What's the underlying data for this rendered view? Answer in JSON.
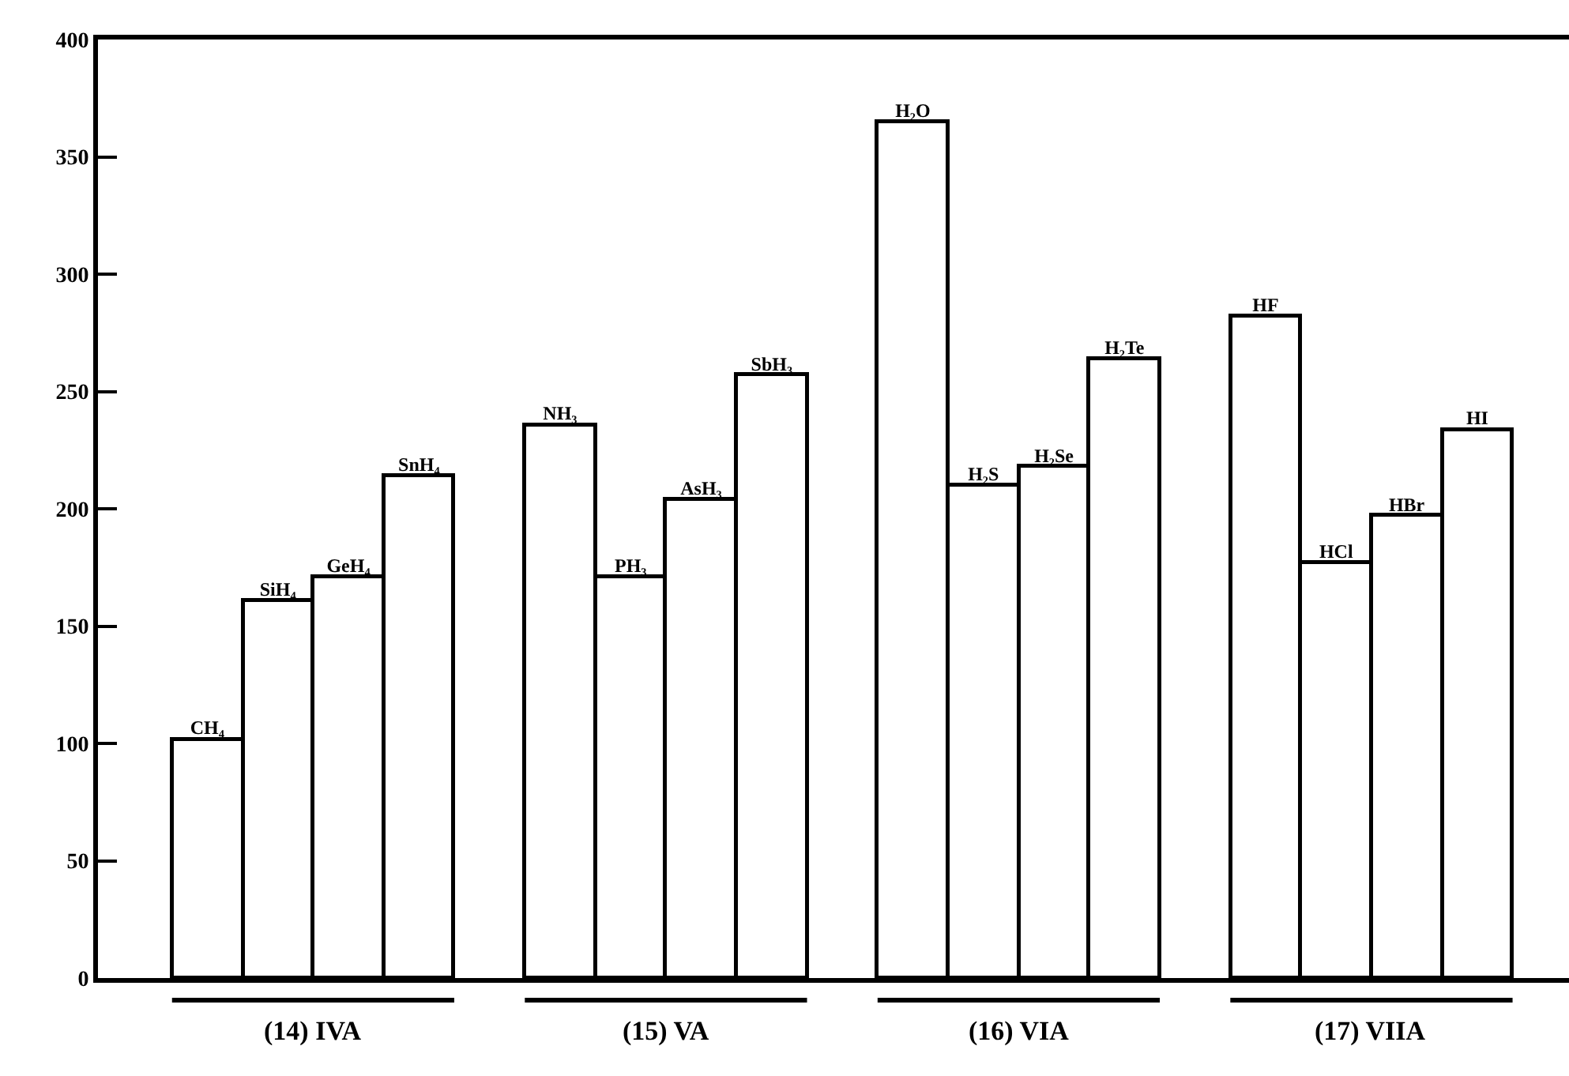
{
  "chart_data": {
    "type": "bar",
    "categories": [
      "CH₄",
      "SiH₄",
      "GeH₄",
      "SnH₄",
      null,
      "NH₃",
      "PH₃",
      "AsH₃",
      "SbH₃",
      null,
      "H₂O",
      "H₂S",
      "H₂Se",
      "H₂Te",
      null,
      "HF",
      "HCl",
      "HBr",
      "HI"
    ],
    "values": [
      102,
      161,
      171,
      214,
      null,
      236,
      171,
      204,
      257,
      null,
      365,
      210,
      218,
      264,
      null,
      282,
      177,
      197,
      234
    ],
    "color": "#ffffff",
    "annotations": [
      "(14) IVA",
      "(15) VA",
      "(16) VIA",
      "(17) VIIA"
    ],
    "ylim": [
      0,
      400
    ],
    "yticks": [
      0,
      50,
      100,
      150,
      200,
      250,
      300,
      350,
      400
    ],
    "grid": false,
    "legend": false
  }
}
